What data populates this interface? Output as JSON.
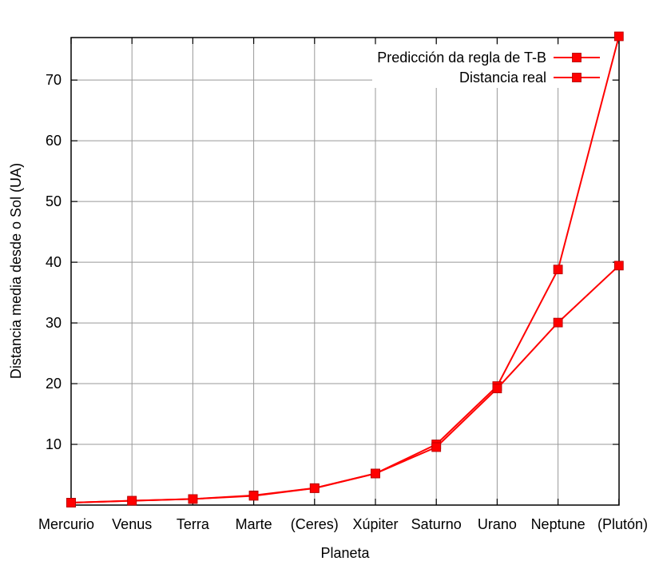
{
  "chart_data": {
    "type": "line",
    "xlabel": "Planeta",
    "ylabel": "Distancia media desde o Sol (UA)",
    "categories": [
      "Mercurio",
      "Venus",
      "Terra",
      "Marte",
      "(Ceres)",
      "Xúpiter",
      "Saturno",
      "Urano",
      "Neptune",
      "(Plutón)"
    ],
    "ylim": [
      0,
      77
    ],
    "yticks": [
      10,
      20,
      30,
      40,
      50,
      60,
      70
    ],
    "grid": true,
    "legend_position": "top-right",
    "series": [
      {
        "name": "Predicción da regla de T-B",
        "color": "#ff0000",
        "values": [
          0.4,
          0.7,
          1.0,
          1.6,
          2.8,
          5.2,
          10.0,
          19.6,
          38.8,
          77.2
        ]
      },
      {
        "name": "Distancia real",
        "color": "#ff0000",
        "values": [
          0.39,
          0.72,
          1.0,
          1.52,
          2.77,
          5.2,
          9.54,
          19.2,
          30.06,
          39.44
        ]
      }
    ]
  }
}
